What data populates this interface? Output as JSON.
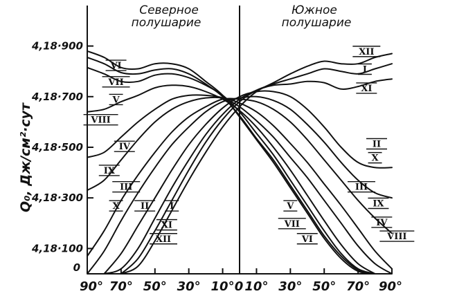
{
  "chart_data": {
    "type": "line",
    "ylabel": "Q₀, Дж/см²·сут",
    "hemispheres": {
      "north": [
        "Северное",
        "полушарие"
      ],
      "south": [
        "Южное",
        "полушарие"
      ]
    },
    "x_ticks": [
      "90°",
      "70°",
      "50°",
      "30°",
      "10°",
      "0",
      "10°",
      "30°",
      "50°",
      "70°",
      "90°"
    ],
    "y_ticks": [
      {
        "value": 0,
        "label": "0"
      },
      {
        "value": 100,
        "label": "4,18·100"
      },
      {
        "value": 300,
        "label": "4,18·300"
      },
      {
        "value": 500,
        "label": "4,18·500"
      },
      {
        "value": 700,
        "label": "4,18·700"
      },
      {
        "value": 900,
        "label": "4,18·900"
      }
    ],
    "xlim": [
      -90,
      90
    ],
    "ylim": [
      0,
      1060
    ],
    "x": [
      -90,
      -80,
      -70,
      -60,
      -50,
      -40,
      -30,
      -20,
      -10,
      0,
      10,
      20,
      30,
      40,
      50,
      60,
      70,
      80,
      90
    ],
    "series": [
      {
        "name": "VI",
        "values": [
          880,
          855,
          815,
          810,
          830,
          830,
          810,
          760,
          705,
          620,
          530,
          440,
          340,
          240,
          140,
          60,
          10,
          0,
          0
        ]
      },
      {
        "name": "VII",
        "values": [
          855,
          830,
          795,
          790,
          805,
          810,
          790,
          750,
          700,
          625,
          535,
          450,
          350,
          250,
          150,
          70,
          15,
          0,
          0
        ]
      },
      {
        "name": "V",
        "values": [
          815,
          790,
          760,
          760,
          785,
          790,
          775,
          745,
          705,
          640,
          555,
          470,
          370,
          270,
          170,
          80,
          20,
          0,
          0
        ]
      },
      {
        "name": "VIII",
        "values": [
          640,
          650,
          680,
          705,
          735,
          745,
          740,
          720,
          690,
          645,
          580,
          500,
          410,
          310,
          210,
          115,
          40,
          0,
          0
        ]
      },
      {
        "name": "IV",
        "values": [
          460,
          480,
          540,
          600,
          650,
          690,
          705,
          705,
          695,
          660,
          605,
          540,
          460,
          380,
          290,
          200,
          110,
          40,
          0
        ]
      },
      {
        "name": "IX",
        "values": [
          330,
          370,
          450,
          530,
          600,
          650,
          680,
          695,
          695,
          675,
          640,
          585,
          515,
          440,
          355,
          270,
          180,
          90,
          20
        ]
      },
      {
        "name": "III",
        "values": [
          70,
          170,
          290,
          390,
          480,
          560,
          620,
          660,
          690,
          690,
          680,
          650,
          600,
          530,
          450,
          370,
          290,
          220,
          160
        ]
      },
      {
        "name": "X",
        "values": [
          0,
          90,
          210,
          320,
          420,
          510,
          580,
          640,
          680,
          695,
          700,
          685,
          650,
          590,
          520,
          440,
          370,
          320,
          300
        ]
      },
      {
        "name": "II",
        "values": [
          0,
          0,
          80,
          190,
          300,
          410,
          510,
          590,
          655,
          700,
          720,
          720,
          700,
          650,
          580,
          500,
          440,
          420,
          420
        ]
      },
      {
        "name": "XI",
        "values": [
          0,
          0,
          20,
          100,
          220,
          340,
          450,
          550,
          630,
          690,
          725,
          745,
          750,
          760,
          755,
          730,
          740,
          760,
          770
        ]
      },
      {
        "name": "I",
        "values": [
          0,
          0,
          0,
          60,
          170,
          290,
          410,
          520,
          610,
          680,
          725,
          750,
          770,
          790,
          810,
          800,
          790,
          810,
          830
        ]
      },
      {
        "name": "XII",
        "values": [
          0,
          0,
          0,
          30,
          130,
          250,
          370,
          480,
          580,
          660,
          720,
          755,
          790,
          820,
          840,
          830,
          830,
          855,
          870
        ]
      }
    ],
    "labels": [
      {
        "text": "VI",
        "series": "VI",
        "x": -73,
        "y": 825
      },
      {
        "text": "VII",
        "series": "VII",
        "x": -73,
        "y": 760
      },
      {
        "text": "V",
        "series": "V",
        "x": -73,
        "y": 690
      },
      {
        "text": "VIII",
        "series": "VIII",
        "x": -82,
        "y": 610
      },
      {
        "text": "IV",
        "series": "IV",
        "x": -68,
        "y": 505
      },
      {
        "text": "IX",
        "series": "IX",
        "x": -77,
        "y": 410
      },
      {
        "text": "III",
        "series": "III",
        "x": -67,
        "y": 345
      },
      {
        "text": "X",
        "series": "X",
        "x": -73,
        "y": 270
      },
      {
        "text": "II",
        "series": "II",
        "x": -56,
        "y": 270
      },
      {
        "text": "I",
        "series": "I",
        "x": -40,
        "y": 270
      },
      {
        "text": "XI",
        "series": "XI",
        "x": -43,
        "y": 195
      },
      {
        "text": "XII",
        "series": "XII",
        "x": -45,
        "y": 140
      },
      {
        "text": "XII",
        "series": "XII",
        "x": 75,
        "y": 880
      },
      {
        "text": "I",
        "series": "I",
        "x": 74,
        "y": 810
      },
      {
        "text": "XI",
        "series": "XI",
        "x": 75,
        "y": 735
      },
      {
        "text": "II",
        "series": "II",
        "x": 81,
        "y": 515
      },
      {
        "text": "X",
        "series": "X",
        "x": 80,
        "y": 460
      },
      {
        "text": "III",
        "series": "III",
        "x": 72,
        "y": 345
      },
      {
        "text": "IX",
        "series": "IX",
        "x": 82,
        "y": 280
      },
      {
        "text": "IV",
        "series": "IV",
        "x": 84,
        "y": 205
      },
      {
        "text": "VIII",
        "series": "VIII",
        "x": 93,
        "y": 150
      },
      {
        "text": "V",
        "series": "V",
        "x": 30,
        "y": 270
      },
      {
        "text": "VII",
        "series": "VII",
        "x": 31,
        "y": 200
      },
      {
        "text": "VI",
        "series": "VI",
        "x": 40,
        "y": 140
      }
    ],
    "grid": false,
    "legend": "none"
  }
}
